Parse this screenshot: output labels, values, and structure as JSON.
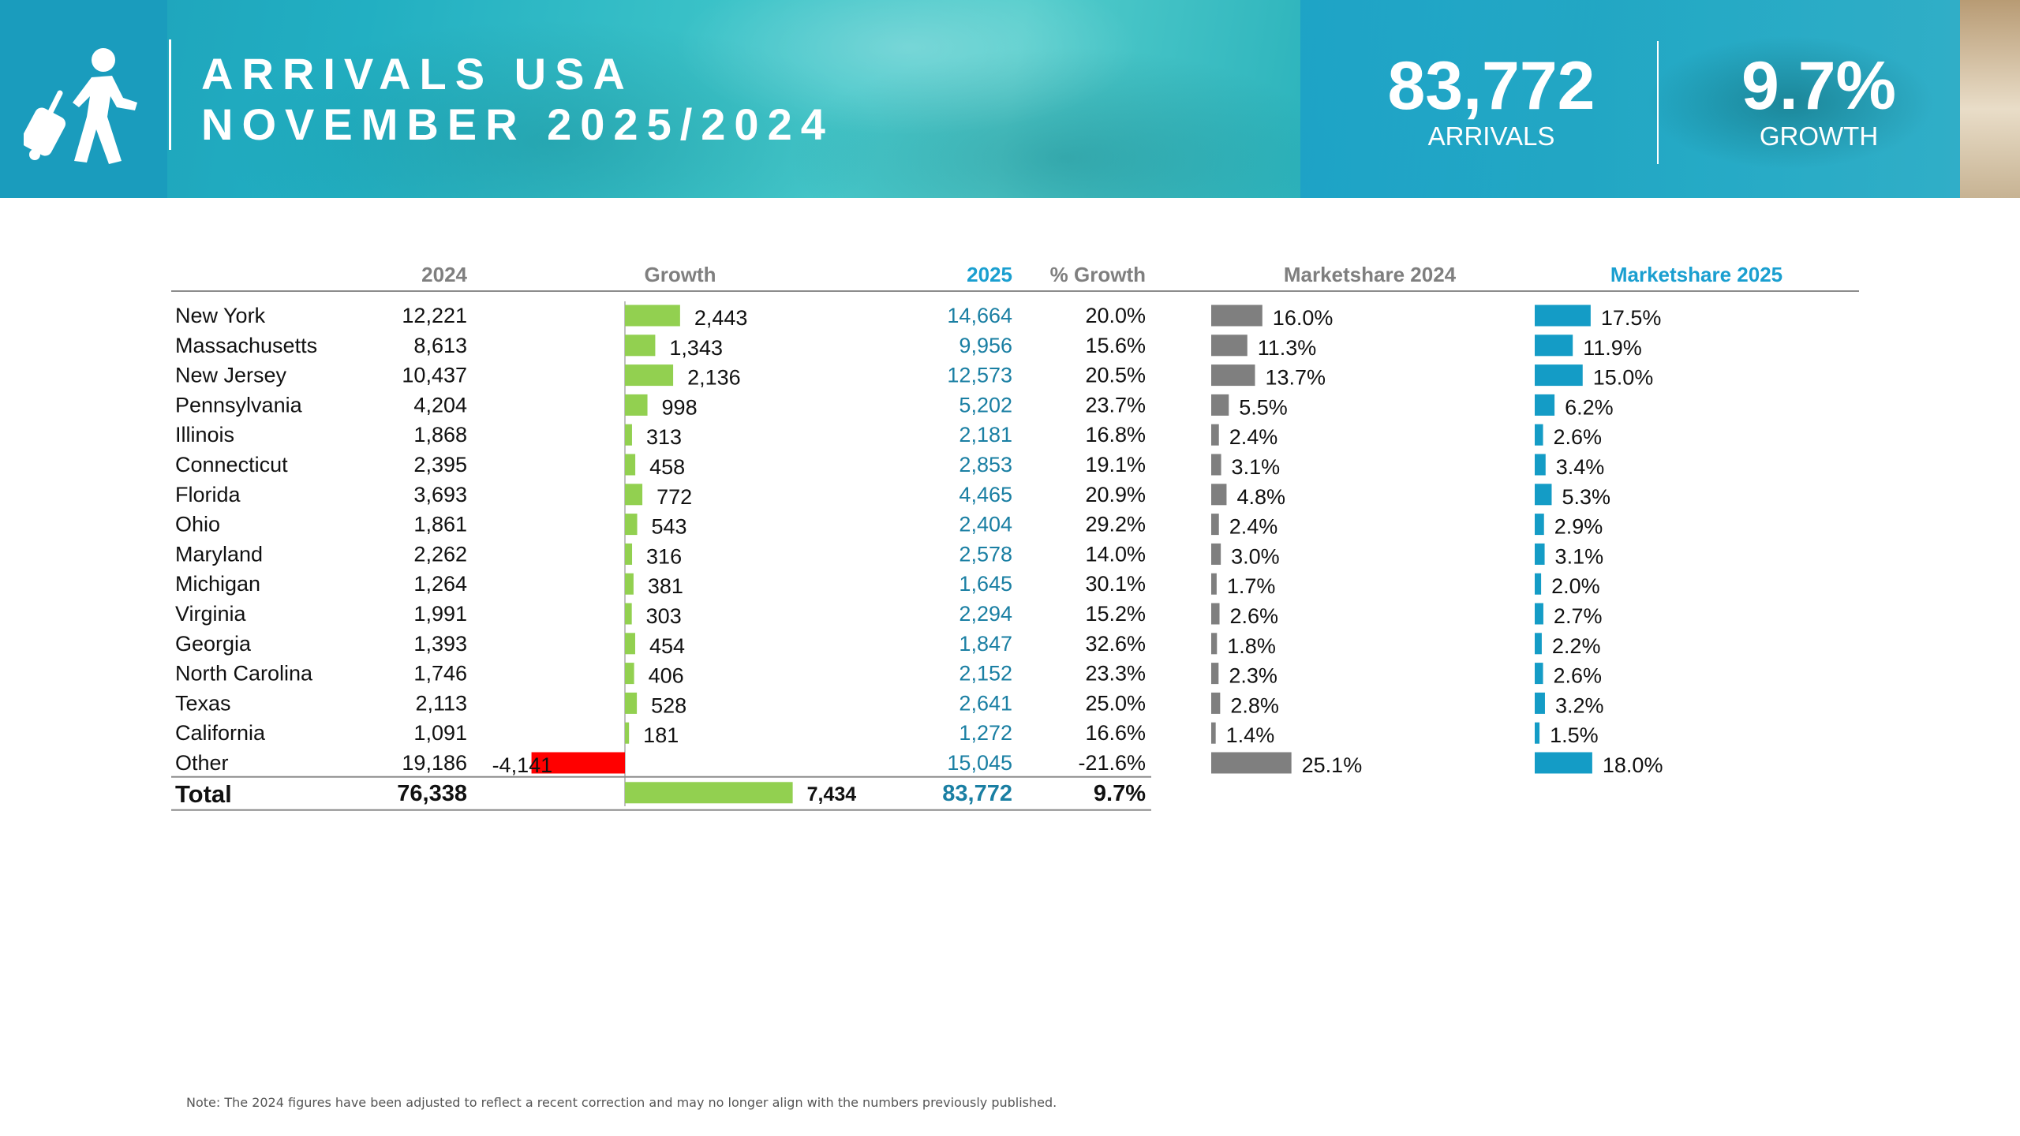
{
  "header": {
    "title_line1": "ARRIVALS USA",
    "title_line2": "NOVEMBER 2025/2024",
    "arrivals_value": "83,772",
    "arrivals_label": "ARRIVALS",
    "growth_value": "9.7%",
    "growth_label": "GROWTH"
  },
  "icons": {
    "traveler": "traveler-with-suitcase-icon"
  },
  "colors": {
    "growth_positive": "#92d050",
    "growth_negative": "#ff0000",
    "share_2024": "#7f7f7f",
    "share_2025": "#149cc6",
    "value_2025": "#1a7fa3",
    "header_2025": "#1a9fd0"
  },
  "chart_data": {
    "type": "table",
    "columns": [
      "",
      "2024",
      "Growth",
      "2025",
      "% Growth",
      "Marketshare 2024",
      "Marketshare 2025"
    ],
    "rows": [
      {
        "state": "New York",
        "y2024": 12221,
        "growth": 2443,
        "y2025": 14664,
        "pct": "20.0%",
        "share2024": 16.0,
        "share2025": 17.5
      },
      {
        "state": "Massachusetts",
        "y2024": 8613,
        "growth": 1343,
        "y2025": 9956,
        "pct": "15.6%",
        "share2024": 11.3,
        "share2025": 11.9
      },
      {
        "state": "New Jersey",
        "y2024": 10437,
        "growth": 2136,
        "y2025": 12573,
        "pct": "20.5%",
        "share2024": 13.7,
        "share2025": 15.0
      },
      {
        "state": "Pennsylvania",
        "y2024": 4204,
        "growth": 998,
        "y2025": 5202,
        "pct": "23.7%",
        "share2024": 5.5,
        "share2025": 6.2
      },
      {
        "state": "Illinois",
        "y2024": 1868,
        "growth": 313,
        "y2025": 2181,
        "pct": "16.8%",
        "share2024": 2.4,
        "share2025": 2.6
      },
      {
        "state": "Connecticut",
        "y2024": 2395,
        "growth": 458,
        "y2025": 2853,
        "pct": "19.1%",
        "share2024": 3.1,
        "share2025": 3.4
      },
      {
        "state": "Florida",
        "y2024": 3693,
        "growth": 772,
        "y2025": 4465,
        "pct": "20.9%",
        "share2024": 4.8,
        "share2025": 5.3
      },
      {
        "state": "Ohio",
        "y2024": 1861,
        "growth": 543,
        "y2025": 2404,
        "pct": "29.2%",
        "share2024": 2.4,
        "share2025": 2.9
      },
      {
        "state": "Maryland",
        "y2024": 2262,
        "growth": 316,
        "y2025": 2578,
        "pct": "14.0%",
        "share2024": 3.0,
        "share2025": 3.1
      },
      {
        "state": "Michigan",
        "y2024": 1264,
        "growth": 381,
        "y2025": 1645,
        "pct": "30.1%",
        "share2024": 1.7,
        "share2025": 2.0
      },
      {
        "state": "Virginia",
        "y2024": 1991,
        "growth": 303,
        "y2025": 2294,
        "pct": "15.2%",
        "share2024": 2.6,
        "share2025": 2.7
      },
      {
        "state": "Georgia",
        "y2024": 1393,
        "growth": 454,
        "y2025": 1847,
        "pct": "32.6%",
        "share2024": 1.8,
        "share2025": 2.2
      },
      {
        "state": "North Carolina",
        "y2024": 1746,
        "growth": 406,
        "y2025": 2152,
        "pct": "23.3%",
        "share2024": 2.3,
        "share2025": 2.6
      },
      {
        "state": "Texas",
        "y2024": 2113,
        "growth": 528,
        "y2025": 2641,
        "pct": "25.0%",
        "share2024": 2.8,
        "share2025": 3.2
      },
      {
        "state": "California",
        "y2024": 1091,
        "growth": 181,
        "y2025": 1272,
        "pct": "16.6%",
        "share2024": 1.4,
        "share2025": 1.5
      },
      {
        "state": "Other",
        "y2024": 19186,
        "growth": -4141,
        "y2025": 15045,
        "pct": "-21.6%",
        "share2024": 25.1,
        "share2025": 18.0
      }
    ],
    "total": {
      "label": "Total",
      "y2024": 76338,
      "growth": 7434,
      "y2025": 83772,
      "pct": "9.7%"
    }
  },
  "footnote": "Note: The 2024 figures have been adjusted to reflect a recent correction and may no longer align with the numbers previously published."
}
